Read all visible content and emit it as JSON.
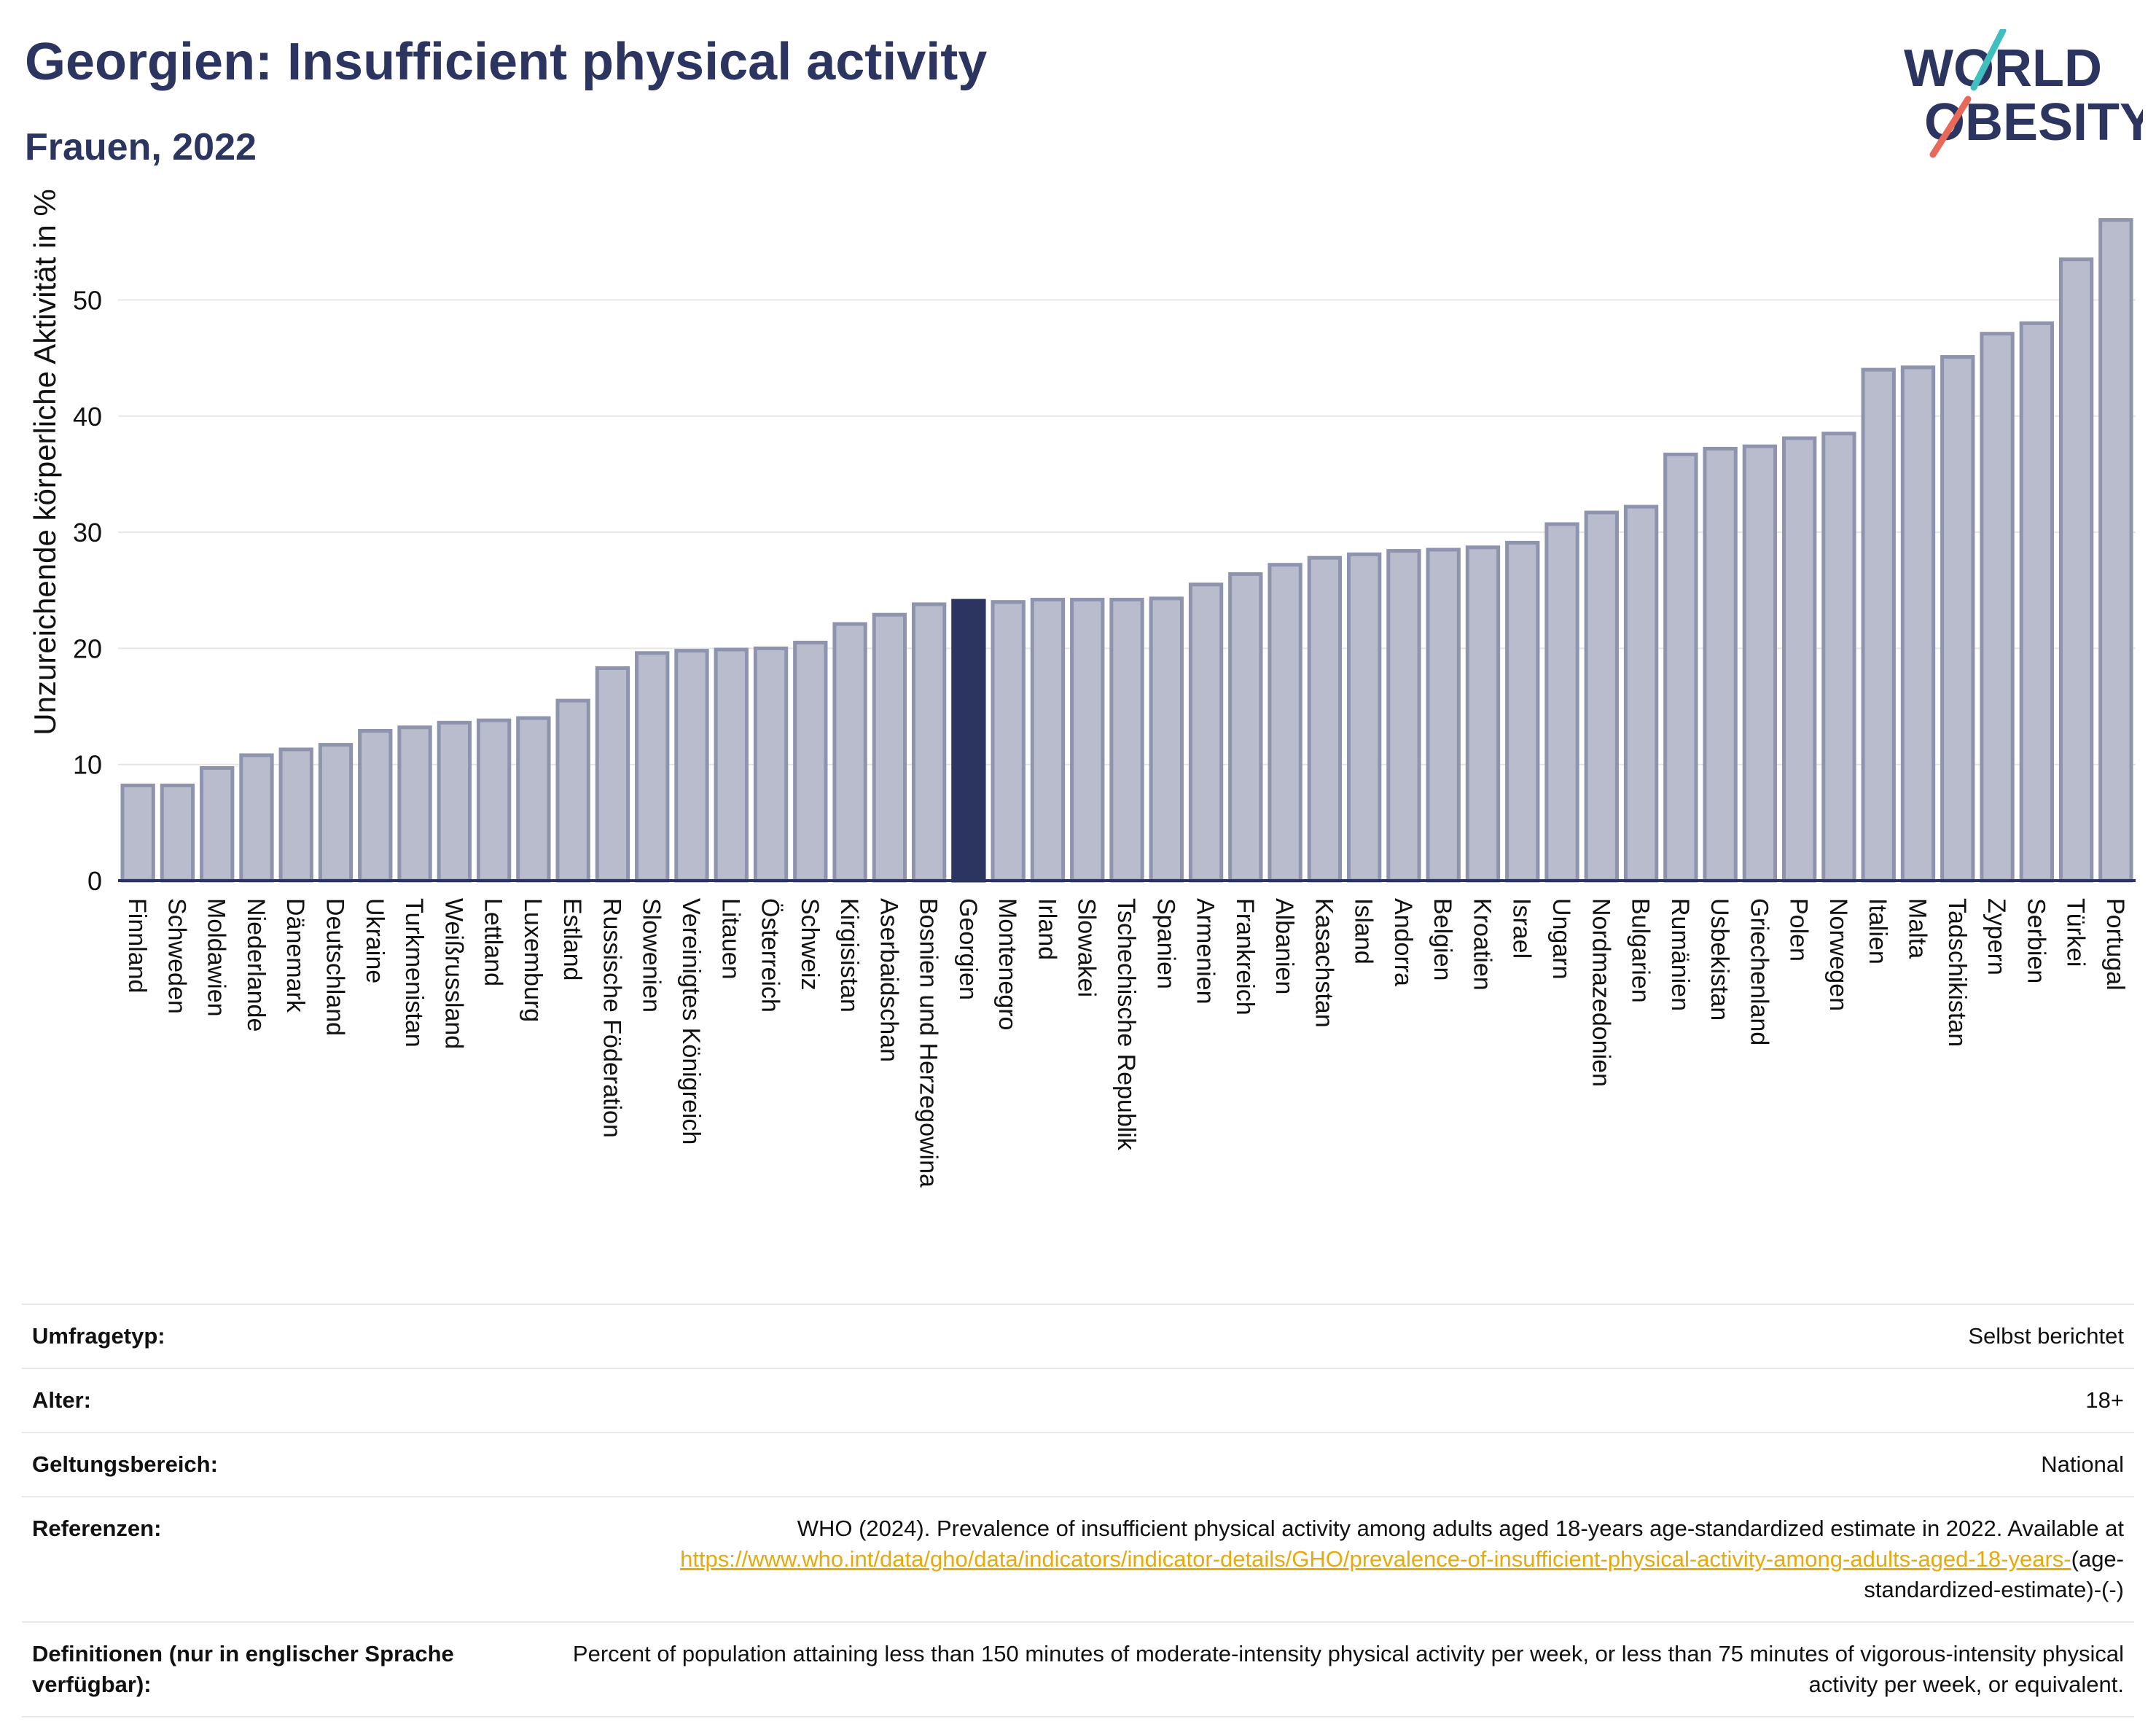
{
  "header": {
    "title": "Georgien: Insufficient physical activity",
    "subtitle": "Frauen, 2022",
    "logo_line1": "WORLD",
    "logo_line2": "OBESITY"
  },
  "colors": {
    "bar": "#b8bccc",
    "bar_stroke": "#8e94ad",
    "highlight": "#2b3560",
    "text": "#2b3560",
    "link": "#e9a90b",
    "logo_teal": "#3fbfbf",
    "logo_coral": "#e8685a"
  },
  "chart_data": {
    "type": "bar",
    "ylabel": "Unzureichende körperliche Aktivität in %",
    "ylim": [
      0,
      57
    ],
    "yticks": [
      0,
      10,
      20,
      30,
      40,
      50
    ],
    "grid": true,
    "highlight": "Georgien",
    "categories": [
      "Finnland",
      "Schweden",
      "Moldawien",
      "Niederlande",
      "Dänemark",
      "Deutschland",
      "Ukraine",
      "Turkmenistan",
      "Weißrussland",
      "Lettland",
      "Luxemburg",
      "Estland",
      "Russische Föderation",
      "Slowenien",
      "Vereinigtes Königreich",
      "Litauen",
      "Österreich",
      "Schweiz",
      "Kirgisistan",
      "Aserbaidschan",
      "Bosnien und Herzegowina",
      "Georgien",
      "Montenegro",
      "Irland",
      "Slowakei",
      "Tschechische Republik",
      "Spanien",
      "Armenien",
      "Frankreich",
      "Albanien",
      "Kasachstan",
      "Island",
      "Andorra",
      "Belgien",
      "Kroatien",
      "Israel",
      "Ungarn",
      "Nordmazedonien",
      "Bulgarien",
      "Rumänien",
      "Usbekistan",
      "Griechenland",
      "Polen",
      "Norwegen",
      "Italien",
      "Malta",
      "Tadschikistan",
      "Zypern",
      "Serbien",
      "Türkei",
      "Portugal"
    ],
    "values": [
      8.2,
      8.2,
      9.7,
      10.8,
      11.3,
      11.7,
      12.9,
      13.2,
      13.6,
      13.8,
      14.0,
      15.5,
      18.3,
      19.6,
      19.8,
      19.9,
      20.0,
      20.5,
      22.1,
      22.9,
      23.8,
      24.1,
      24.0,
      24.2,
      24.2,
      24.2,
      24.3,
      25.5,
      26.4,
      27.2,
      27.8,
      28.1,
      28.4,
      28.5,
      28.7,
      29.1,
      30.7,
      31.7,
      32.2,
      36.7,
      37.2,
      37.4,
      38.1,
      38.5,
      44.0,
      44.2,
      45.1,
      47.1,
      48.0,
      53.5,
      56.9
    ]
  },
  "meta": [
    {
      "key": "Umfragetyp:",
      "value": "Selbst berichtet"
    },
    {
      "key": "Alter:",
      "value": "18+"
    },
    {
      "key": "Geltungsbereich:",
      "value": "National"
    }
  ],
  "references": {
    "key": "Referenzen:",
    "text": "WHO (2024). Prevalence of insufficient physical activity among adults aged 18-years age-standardized estimate in 2022. Available at",
    "link": "https://www.who.int/data/gho/data/indicators/indicator-details/GHO/prevalence-of-insufficient-physical-activity-among-adults-aged-18-years-",
    "suffix": "(age-standardized-estimate)-(-)"
  },
  "definitions": {
    "key": "Definitionen (nur in englischer Sprache verfügbar):",
    "value": "Percent of population attaining less than 150 minutes of moderate-intensity physical activity per week, or less than 75 minutes of vigorous-intensity physical activity per week, or equivalent."
  }
}
